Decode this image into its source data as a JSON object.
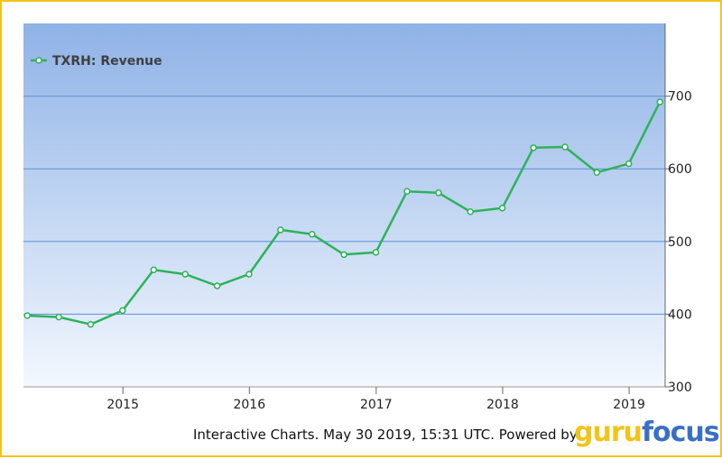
{
  "chart_data": {
    "type": "line",
    "legend": {
      "label": "TXRH: Revenue",
      "position": "top-left"
    },
    "colors": {
      "line": "#2db35a",
      "plot_top": "#8fb2e6",
      "plot_bottom": "#f3f8fe",
      "grid": "#5b8fd8"
    },
    "x_ticks": [
      "2015",
      "2016",
      "2017",
      "2018",
      "2019"
    ],
    "y_ticks": [
      300,
      400,
      500,
      600,
      700
    ],
    "xlim": [
      "2014-03-20",
      "2019-04-15"
    ],
    "ylim": [
      300,
      800
    ],
    "grid": true,
    "series": [
      {
        "name": "TXRH: Revenue",
        "points": [
          {
            "date": "2014-03-31",
            "value": 398
          },
          {
            "date": "2014-06-30",
            "value": 396
          },
          {
            "date": "2014-09-30",
            "value": 386
          },
          {
            "date": "2014-12-31",
            "value": 405
          },
          {
            "date": "2015-03-31",
            "value": 461
          },
          {
            "date": "2015-06-30",
            "value": 455
          },
          {
            "date": "2015-09-30",
            "value": 439
          },
          {
            "date": "2015-12-31",
            "value": 455
          },
          {
            "date": "2016-03-31",
            "value": 516
          },
          {
            "date": "2016-06-30",
            "value": 510
          },
          {
            "date": "2016-09-30",
            "value": 482
          },
          {
            "date": "2016-12-31",
            "value": 485
          },
          {
            "date": "2017-03-31",
            "value": 569
          },
          {
            "date": "2017-06-30",
            "value": 567
          },
          {
            "date": "2017-09-30",
            "value": 541
          },
          {
            "date": "2017-12-31",
            "value": 546
          },
          {
            "date": "2018-03-31",
            "value": 629
          },
          {
            "date": "2018-06-30",
            "value": 630
          },
          {
            "date": "2018-09-30",
            "value": 595
          },
          {
            "date": "2018-12-31",
            "value": 607
          },
          {
            "date": "2019-03-31",
            "value": 692
          }
        ]
      }
    ]
  },
  "footer": {
    "text": "Interactive Charts. May 30 2019, 15:31 UTC. Powered by"
  },
  "brand": {
    "part1": "guru",
    "part2": "focus"
  }
}
